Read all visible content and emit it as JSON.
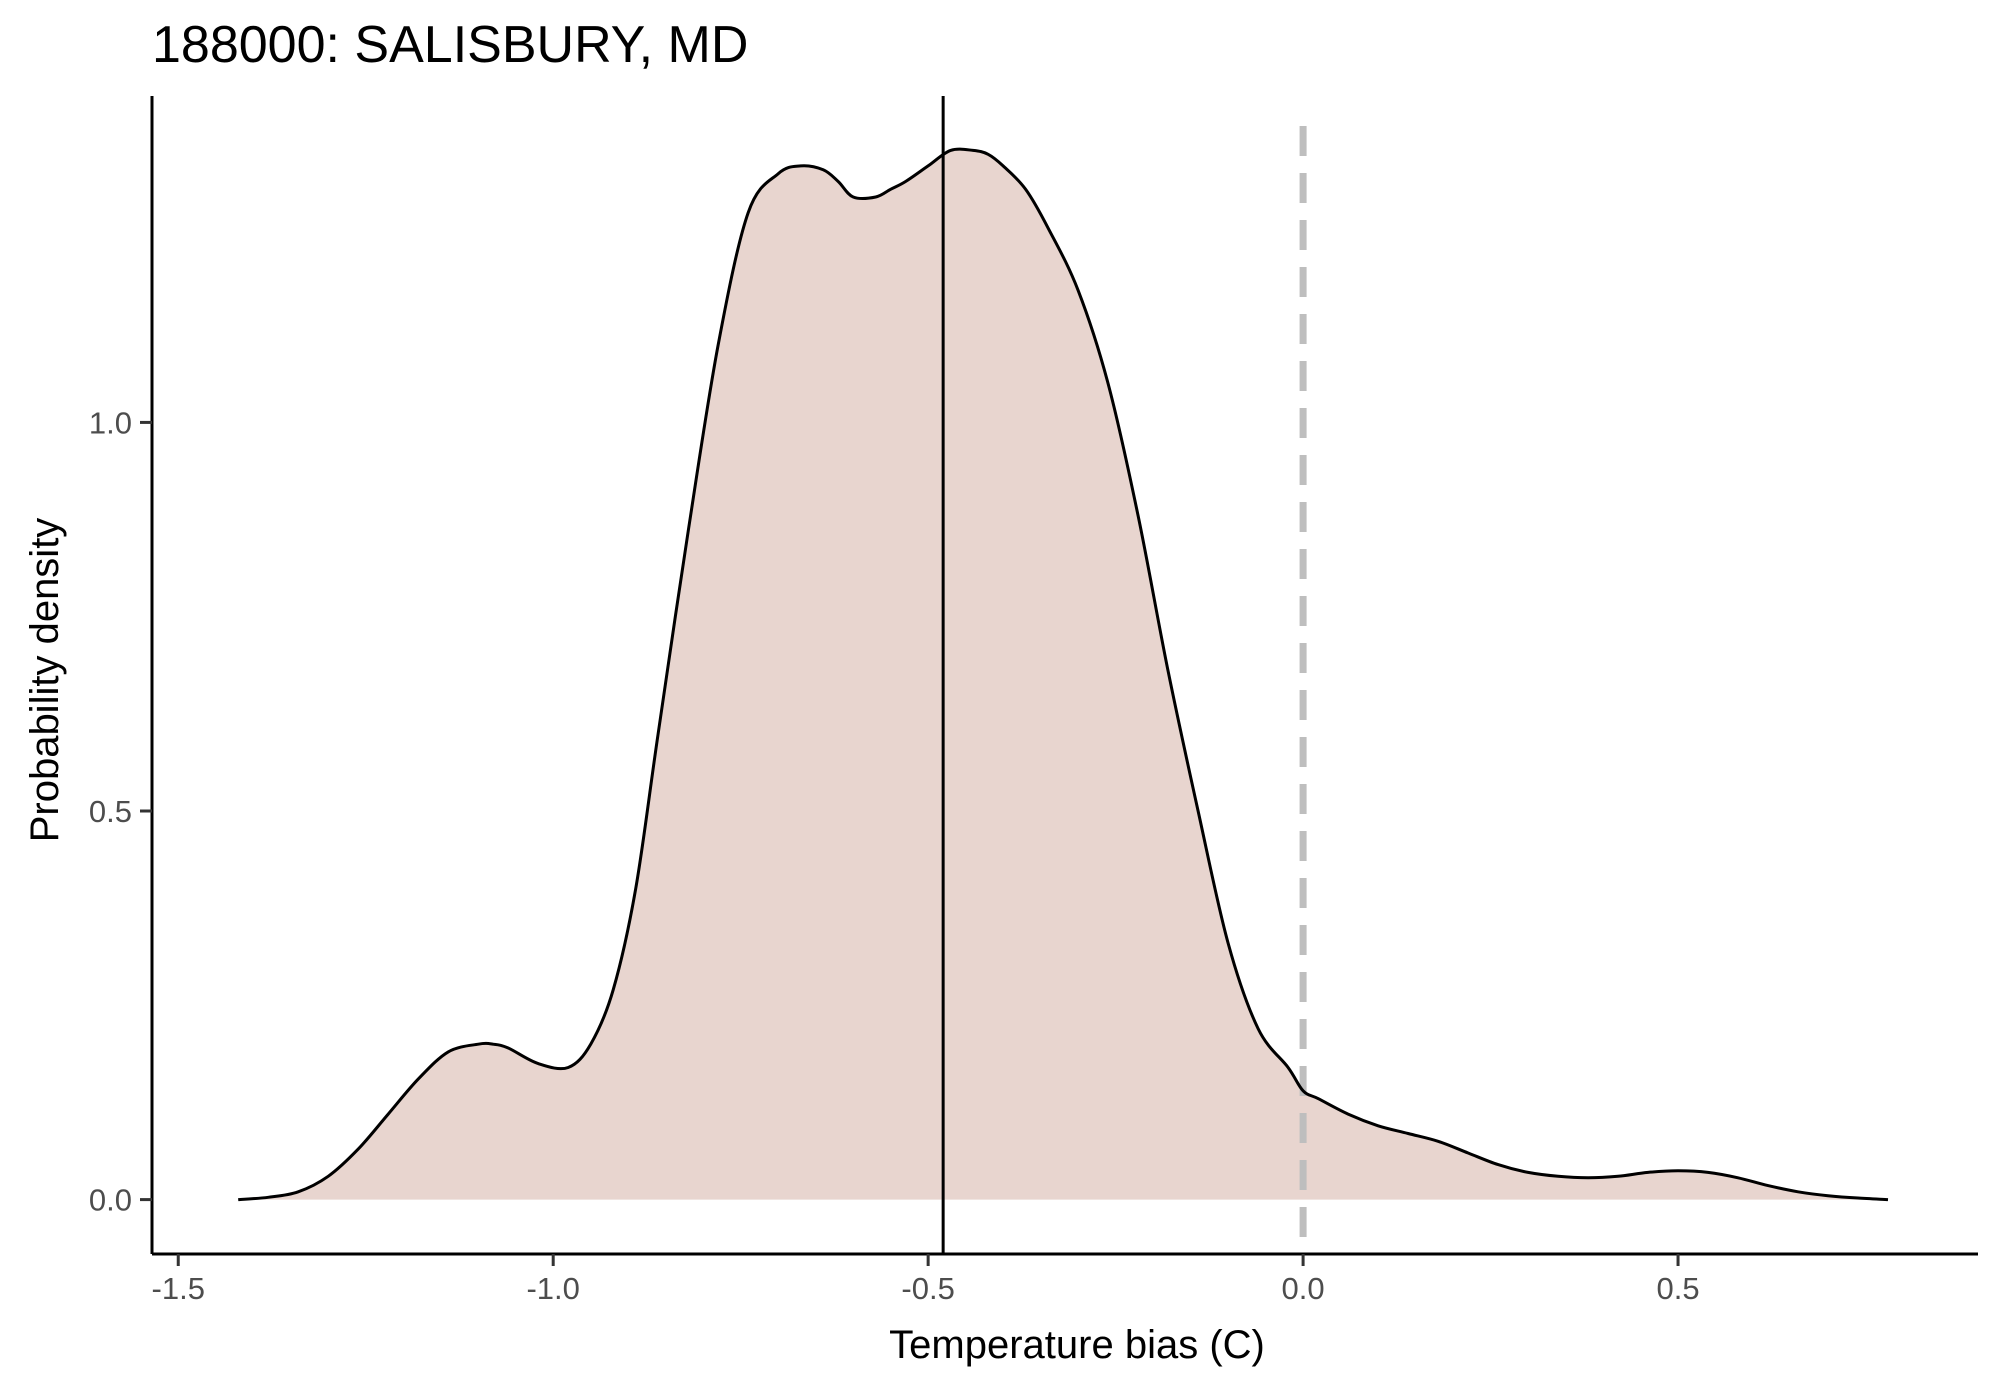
{
  "chart_data": {
    "type": "area",
    "title": "188000: SALISBURY, MD",
    "xlabel": "Temperature bias (C)",
    "ylabel": "Probability density",
    "xlim": [
      -1.535,
      0.9
    ],
    "ylim": [
      -0.07,
      1.42
    ],
    "x_ticks": [
      -1.5,
      -1.0,
      -0.5,
      0.0,
      0.5
    ],
    "x_tick_labels": [
      "-1.5",
      "-1.0",
      "-0.5",
      "0.0",
      "0.5"
    ],
    "y_ticks": [
      0.0,
      0.5,
      1.0
    ],
    "y_tick_labels": [
      "0.0",
      "0.5",
      "1.0"
    ],
    "grid": false,
    "legend": "none",
    "fill_color": "#e8d5cf",
    "line_color": "#000000",
    "reference_lines": [
      {
        "x": -0.48,
        "style": "solid",
        "color": "#000000"
      },
      {
        "x": 0.0,
        "style": "dashed",
        "color": "#bebebe"
      }
    ],
    "series": [
      {
        "x": [
          -1.42,
          -1.38,
          -1.34,
          -1.3,
          -1.26,
          -1.22,
          -1.18,
          -1.14,
          -1.1,
          -1.08,
          -1.06,
          -1.02,
          -0.98,
          -0.95,
          -0.92,
          -0.89,
          -0.86,
          -0.82,
          -0.78,
          -0.74,
          -0.7,
          -0.67,
          -0.64,
          -0.62,
          -0.6,
          -0.57,
          -0.55,
          -0.53,
          -0.5,
          -0.47,
          -0.44,
          -0.42,
          -0.4,
          -0.37,
          -0.34,
          -0.3,
          -0.26,
          -0.22,
          -0.18,
          -0.14,
          -0.1,
          -0.06,
          -0.02,
          0.0,
          0.02,
          0.06,
          0.1,
          0.14,
          0.18,
          0.22,
          0.26,
          0.3,
          0.34,
          0.38,
          0.42,
          0.46,
          0.5,
          0.54,
          0.58,
          0.62,
          0.66,
          0.7,
          0.74,
          0.78
        ],
        "y": [
          0.0,
          0.003,
          0.01,
          0.03,
          0.065,
          0.11,
          0.155,
          0.19,
          0.2,
          0.2,
          0.195,
          0.175,
          0.17,
          0.2,
          0.27,
          0.4,
          0.6,
          0.86,
          1.1,
          1.27,
          1.32,
          1.33,
          1.325,
          1.31,
          1.29,
          1.29,
          1.3,
          1.31,
          1.33,
          1.35,
          1.35,
          1.345,
          1.33,
          1.3,
          1.25,
          1.17,
          1.05,
          0.88,
          0.68,
          0.5,
          0.33,
          0.22,
          0.17,
          0.14,
          0.13,
          0.11,
          0.095,
          0.085,
          0.075,
          0.06,
          0.045,
          0.035,
          0.03,
          0.028,
          0.03,
          0.035,
          0.037,
          0.035,
          0.028,
          0.018,
          0.01,
          0.005,
          0.002,
          0.0
        ]
      }
    ]
  }
}
